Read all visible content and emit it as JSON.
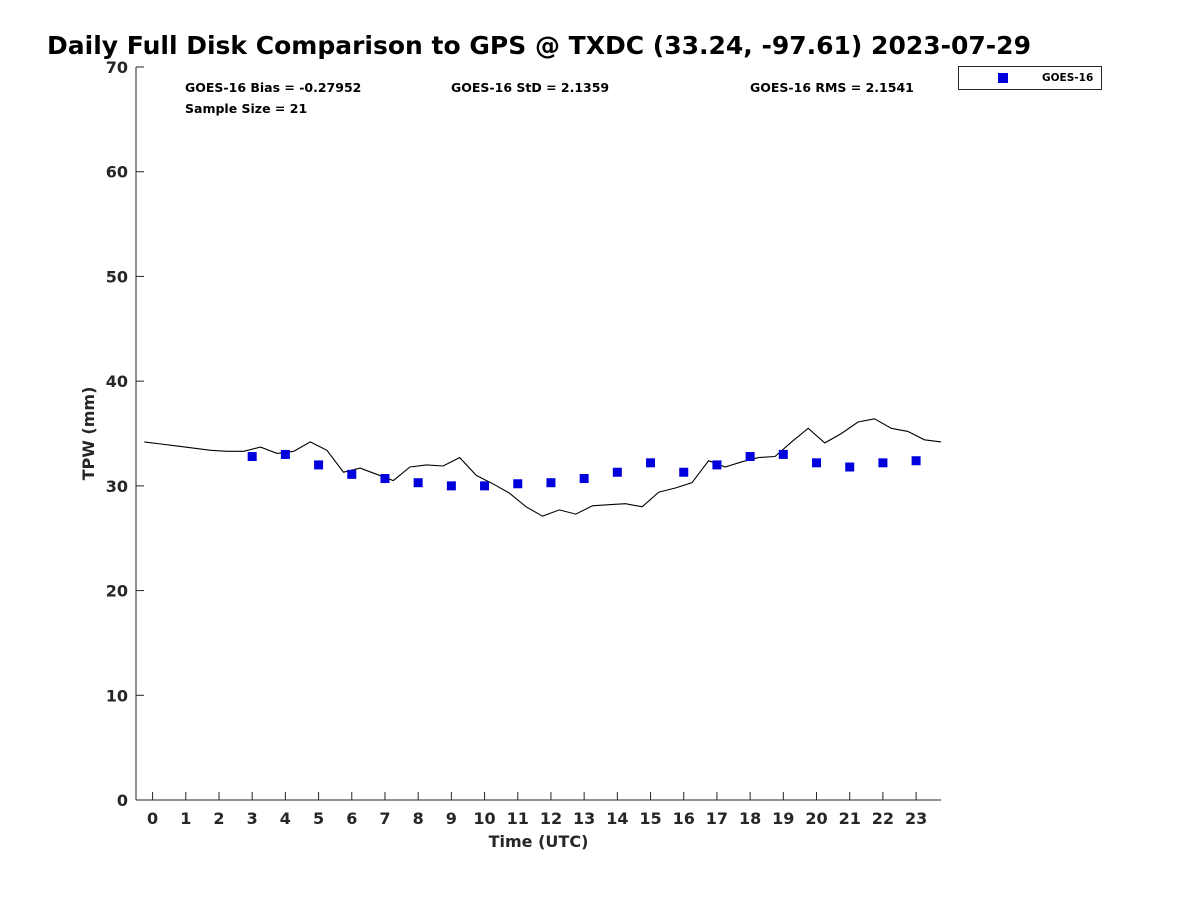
{
  "chart_data": {
    "type": "scatter",
    "title": "Daily Full Disk Comparison to GPS @ TXDC (33.24, -97.61) 2023-07-29",
    "xlabel": "Time (UTC)",
    "ylabel": "TPW (mm)",
    "xlim": [
      -0.5,
      23.75
    ],
    "ylim": [
      0,
      70
    ],
    "xticks": [
      0,
      1,
      2,
      3,
      4,
      5,
      6,
      7,
      8,
      9,
      10,
      11,
      12,
      13,
      14,
      15,
      16,
      17,
      18,
      19,
      20,
      21,
      22,
      23
    ],
    "yticks": [
      0,
      10,
      20,
      30,
      40,
      50,
      60,
      70
    ],
    "grid": false,
    "legend": {
      "placement": "top-right, outside plot",
      "entries": [
        "GOES-16"
      ]
    },
    "stats": {
      "bias": "GOES-16 Bias = -0.27952",
      "std": "GOES-16 StD = 2.1359",
      "rms": "GOES-16 RMS = 2.1541",
      "sample": "Sample Size = 21"
    },
    "series": [
      {
        "name": "GOES-16",
        "kind": "scatter",
        "marker": "square",
        "color": "#0000dd",
        "x": [
          3,
          4,
          5,
          6,
          7,
          8,
          9,
          10,
          11,
          12,
          13,
          14,
          15,
          16,
          17,
          18,
          19,
          20,
          21,
          22,
          23
        ],
        "y": [
          32.8,
          33.0,
          32.0,
          31.1,
          30.7,
          30.3,
          30.0,
          30.0,
          30.2,
          30.3,
          30.7,
          31.3,
          32.2,
          31.3,
          32.0,
          32.8,
          33.0,
          32.2,
          31.8,
          32.2,
          32.4
        ]
      },
      {
        "kind": "line",
        "color": "#000000",
        "x": [
          -0.25,
          0.25,
          0.75,
          1.25,
          1.75,
          2.25,
          2.75,
          3.25,
          3.75,
          4.25,
          4.75,
          5.25,
          5.75,
          6.25,
          6.75,
          7.25,
          7.75,
          8.25,
          8.75,
          9.25,
          9.75,
          10.25,
          10.75,
          11.25,
          11.75,
          12.25,
          12.75,
          13.25,
          13.75,
          14.25,
          14.75,
          15.25,
          15.75,
          16.25,
          16.75,
          17.25,
          17.75,
          18.25,
          18.75,
          19.25,
          19.75,
          20.25,
          20.75,
          21.25,
          21.75,
          22.25,
          22.75,
          23.25,
          23.75
        ],
        "y": [
          34.2,
          34.0,
          33.8,
          33.6,
          33.4,
          33.3,
          33.3,
          33.7,
          33.1,
          33.3,
          34.2,
          33.4,
          31.3,
          31.7,
          31.1,
          30.5,
          31.8,
          32.0,
          31.9,
          32.7,
          31.0,
          30.2,
          29.3,
          28.0,
          27.1,
          27.7,
          27.3,
          28.1,
          28.2,
          28.3,
          28.0,
          29.4,
          29.8,
          30.3,
          32.4,
          31.8,
          32.3,
          32.7,
          32.8,
          34.2,
          35.5,
          34.1,
          35.0,
          36.1,
          36.4,
          35.5,
          35.2,
          34.4,
          34.2
        ]
      }
    ]
  }
}
